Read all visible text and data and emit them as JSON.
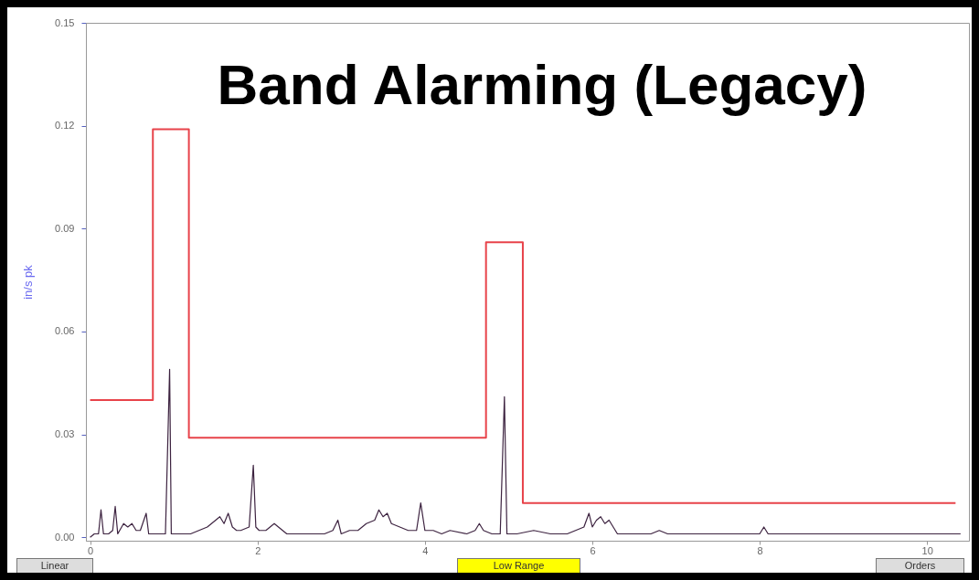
{
  "chart_data": {
    "type": "line",
    "title": "Band Alarming (Legacy)",
    "ylabel": "in/s pk",
    "xlim": [
      -0.05,
      10.5
    ],
    "ylim": [
      -0.001,
      0.15
    ],
    "xticks": [
      0,
      2,
      4,
      6,
      8,
      10
    ],
    "yticks": [
      {
        "value": 0,
        "label": "0.00"
      },
      {
        "value": 0.03,
        "label": "0.03"
      },
      {
        "value": 0.06,
        "label": "0.06"
      },
      {
        "value": 0.09,
        "label": "0.09"
      },
      {
        "value": 0.12,
        "label": "0.12"
      },
      {
        "value": 0.15,
        "label": "0.15"
      }
    ],
    "grid": false,
    "marker": "none",
    "line_style": "solid",
    "annotations": [
      "Linear",
      "Low Range",
      "Orders"
    ],
    "series": [
      {
        "type": "line",
        "color": "#3d2340",
        "x": [
          0,
          0.05,
          0.1,
          0.13,
          0.16,
          0.22,
          0.27,
          0.3,
          0.33,
          0.4,
          0.45,
          0.5,
          0.55,
          0.6,
          0.67,
          0.7,
          0.73,
          0.8,
          0.9,
          0.95,
          0.97,
          1.0,
          1.1,
          1.2,
          1.3,
          1.4,
          1.5,
          1.55,
          1.6,
          1.65,
          1.7,
          1.75,
          1.8,
          1.9,
          1.95,
          1.98,
          2.02,
          2.1,
          2.2,
          2.3,
          2.35,
          2.4,
          2.6,
          2.8,
          2.9,
          2.96,
          3.0,
          3.1,
          3.2,
          3.3,
          3.4,
          3.45,
          3.5,
          3.55,
          3.6,
          3.7,
          3.8,
          3.9,
          3.95,
          4.0,
          4.1,
          4.2,
          4.3,
          4.5,
          4.6,
          4.65,
          4.7,
          4.8,
          4.9,
          4.95,
          4.98,
          5.0,
          5.1,
          5.3,
          5.5,
          5.7,
          5.9,
          5.96,
          6.0,
          6.05,
          6.1,
          6.15,
          6.2,
          6.3,
          6.5,
          6.7,
          6.8,
          6.9,
          7.0,
          7.1,
          7.5,
          8.0,
          8.05,
          8.1,
          8.5,
          8.7,
          9.0,
          9.5,
          10.0,
          10.4
        ],
        "values": [
          0.0,
          0.001,
          0.001,
          0.008,
          0.001,
          0.001,
          0.002,
          0.009,
          0.001,
          0.004,
          0.003,
          0.004,
          0.002,
          0.002,
          0.007,
          0.001,
          0.001,
          0.001,
          0.001,
          0.049,
          0.001,
          0.001,
          0.001,
          0.001,
          0.002,
          0.003,
          0.005,
          0.006,
          0.004,
          0.007,
          0.003,
          0.002,
          0.002,
          0.003,
          0.021,
          0.003,
          0.002,
          0.002,
          0.004,
          0.002,
          0.001,
          0.001,
          0.001,
          0.001,
          0.002,
          0.005,
          0.001,
          0.002,
          0.002,
          0.004,
          0.005,
          0.008,
          0.006,
          0.007,
          0.004,
          0.003,
          0.002,
          0.002,
          0.01,
          0.002,
          0.002,
          0.001,
          0.002,
          0.001,
          0.002,
          0.004,
          0.002,
          0.001,
          0.001,
          0.041,
          0.001,
          0.001,
          0.001,
          0.002,
          0.001,
          0.001,
          0.003,
          0.007,
          0.003,
          0.005,
          0.006,
          0.004,
          0.005,
          0.001,
          0.001,
          0.001,
          0.002,
          0.001,
          0.001,
          0.001,
          0.001,
          0.001,
          0.003,
          0.001,
          0.001,
          0.001,
          0.001,
          0.001,
          0.001,
          0.001
        ]
      },
      {
        "type": "step",
        "color": "#e8434a",
        "x": [
          0,
          0.75,
          1.18,
          4.73,
          5.17,
          10.34
        ],
        "values": [
          0.04,
          0.119,
          0.029,
          0.086,
          0.01,
          0.01
        ]
      }
    ]
  }
}
